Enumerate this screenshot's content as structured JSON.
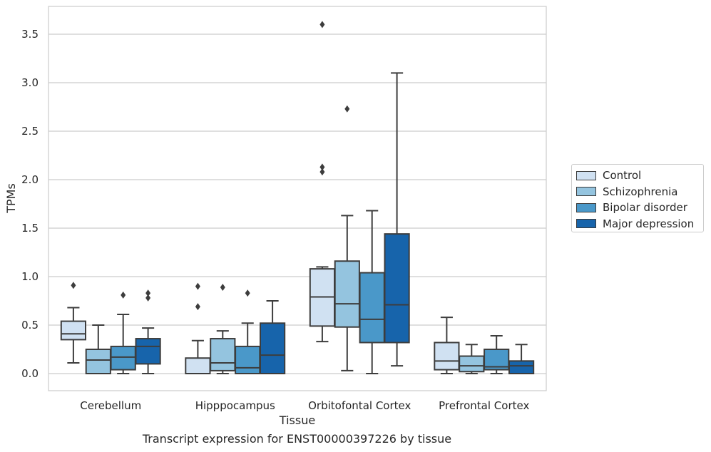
{
  "chart_data": {
    "type": "box",
    "title": "Transcript expression for ENST00000397226 by tissue",
    "xlabel": "Tissue",
    "ylabel": "TPMs",
    "ylim": [
      -0.17,
      3.77
    ],
    "yticks": [
      "0.0",
      "0.5",
      "1.0",
      "1.5",
      "2.0",
      "2.5",
      "3.0",
      "3.5"
    ],
    "grid": "horizontal",
    "legend_placement": "right",
    "categories": [
      "Cerebellum",
      "Hipppocampus",
      "Orbitofontal Cortex",
      "Prefrontal Cortex"
    ],
    "series": [
      {
        "name": "Control",
        "color": "#d0e1f2",
        "boxes": [
          {
            "whislo": 0.11,
            "q1": 0.35,
            "med": 0.41,
            "q3": 0.54,
            "whishi": 0.68,
            "fliers": [
              0.91
            ]
          },
          {
            "whislo": 0.0,
            "q1": 0.0,
            "med": 0.0,
            "q3": 0.16,
            "whishi": 0.34,
            "fliers": [
              0.69,
              0.9
            ]
          },
          {
            "whislo": 0.33,
            "q1": 0.49,
            "med": 0.79,
            "q3": 1.08,
            "whishi": 1.1,
            "fliers": [
              2.08,
              2.13,
              3.6
            ]
          },
          {
            "whislo": 0.0,
            "q1": 0.04,
            "med": 0.13,
            "q3": 0.32,
            "whishi": 0.58,
            "fliers": []
          }
        ]
      },
      {
        "name": "Schizophrenia",
        "color": "#94c4df",
        "boxes": [
          {
            "whislo": 0.0,
            "q1": 0.0,
            "med": 0.14,
            "q3": 0.25,
            "whishi": 0.5,
            "fliers": []
          },
          {
            "whislo": 0.0,
            "q1": 0.03,
            "med": 0.11,
            "q3": 0.36,
            "whishi": 0.44,
            "fliers": [
              0.89
            ]
          },
          {
            "whislo": 0.03,
            "q1": 0.48,
            "med": 0.72,
            "q3": 1.16,
            "whishi": 1.63,
            "fliers": [
              2.73
            ]
          },
          {
            "whislo": 0.0,
            "q1": 0.02,
            "med": 0.08,
            "q3": 0.18,
            "whishi": 0.3,
            "fliers": []
          }
        ]
      },
      {
        "name": "Bipolar disorder",
        "color": "#4a98c9",
        "boxes": [
          {
            "whislo": 0.0,
            "q1": 0.04,
            "med": 0.17,
            "q3": 0.28,
            "whishi": 0.61,
            "fliers": [
              0.81
            ]
          },
          {
            "whislo": 0.0,
            "q1": 0.0,
            "med": 0.06,
            "q3": 0.28,
            "whishi": 0.52,
            "fliers": [
              0.83
            ]
          },
          {
            "whislo": 0.0,
            "q1": 0.32,
            "med": 0.56,
            "q3": 1.04,
            "whishi": 1.68,
            "fliers": []
          },
          {
            "whislo": 0.0,
            "q1": 0.04,
            "med": 0.07,
            "q3": 0.25,
            "whishi": 0.39,
            "fliers": []
          }
        ]
      },
      {
        "name": "Major depression",
        "color": "#1764ab",
        "boxes": [
          {
            "whislo": 0.0,
            "q1": 0.1,
            "med": 0.28,
            "q3": 0.36,
            "whishi": 0.47,
            "fliers": [
              0.78,
              0.83
            ]
          },
          {
            "whislo": 0.0,
            "q1": 0.0,
            "med": 0.19,
            "q3": 0.52,
            "whishi": 0.75,
            "fliers": []
          },
          {
            "whislo": 0.08,
            "q1": 0.32,
            "med": 0.71,
            "q3": 1.44,
            "whishi": 3.1,
            "fliers": []
          },
          {
            "whislo": 0.0,
            "q1": 0.0,
            "med": 0.08,
            "q3": 0.13,
            "whishi": 0.3,
            "fliers": []
          }
        ]
      }
    ]
  }
}
